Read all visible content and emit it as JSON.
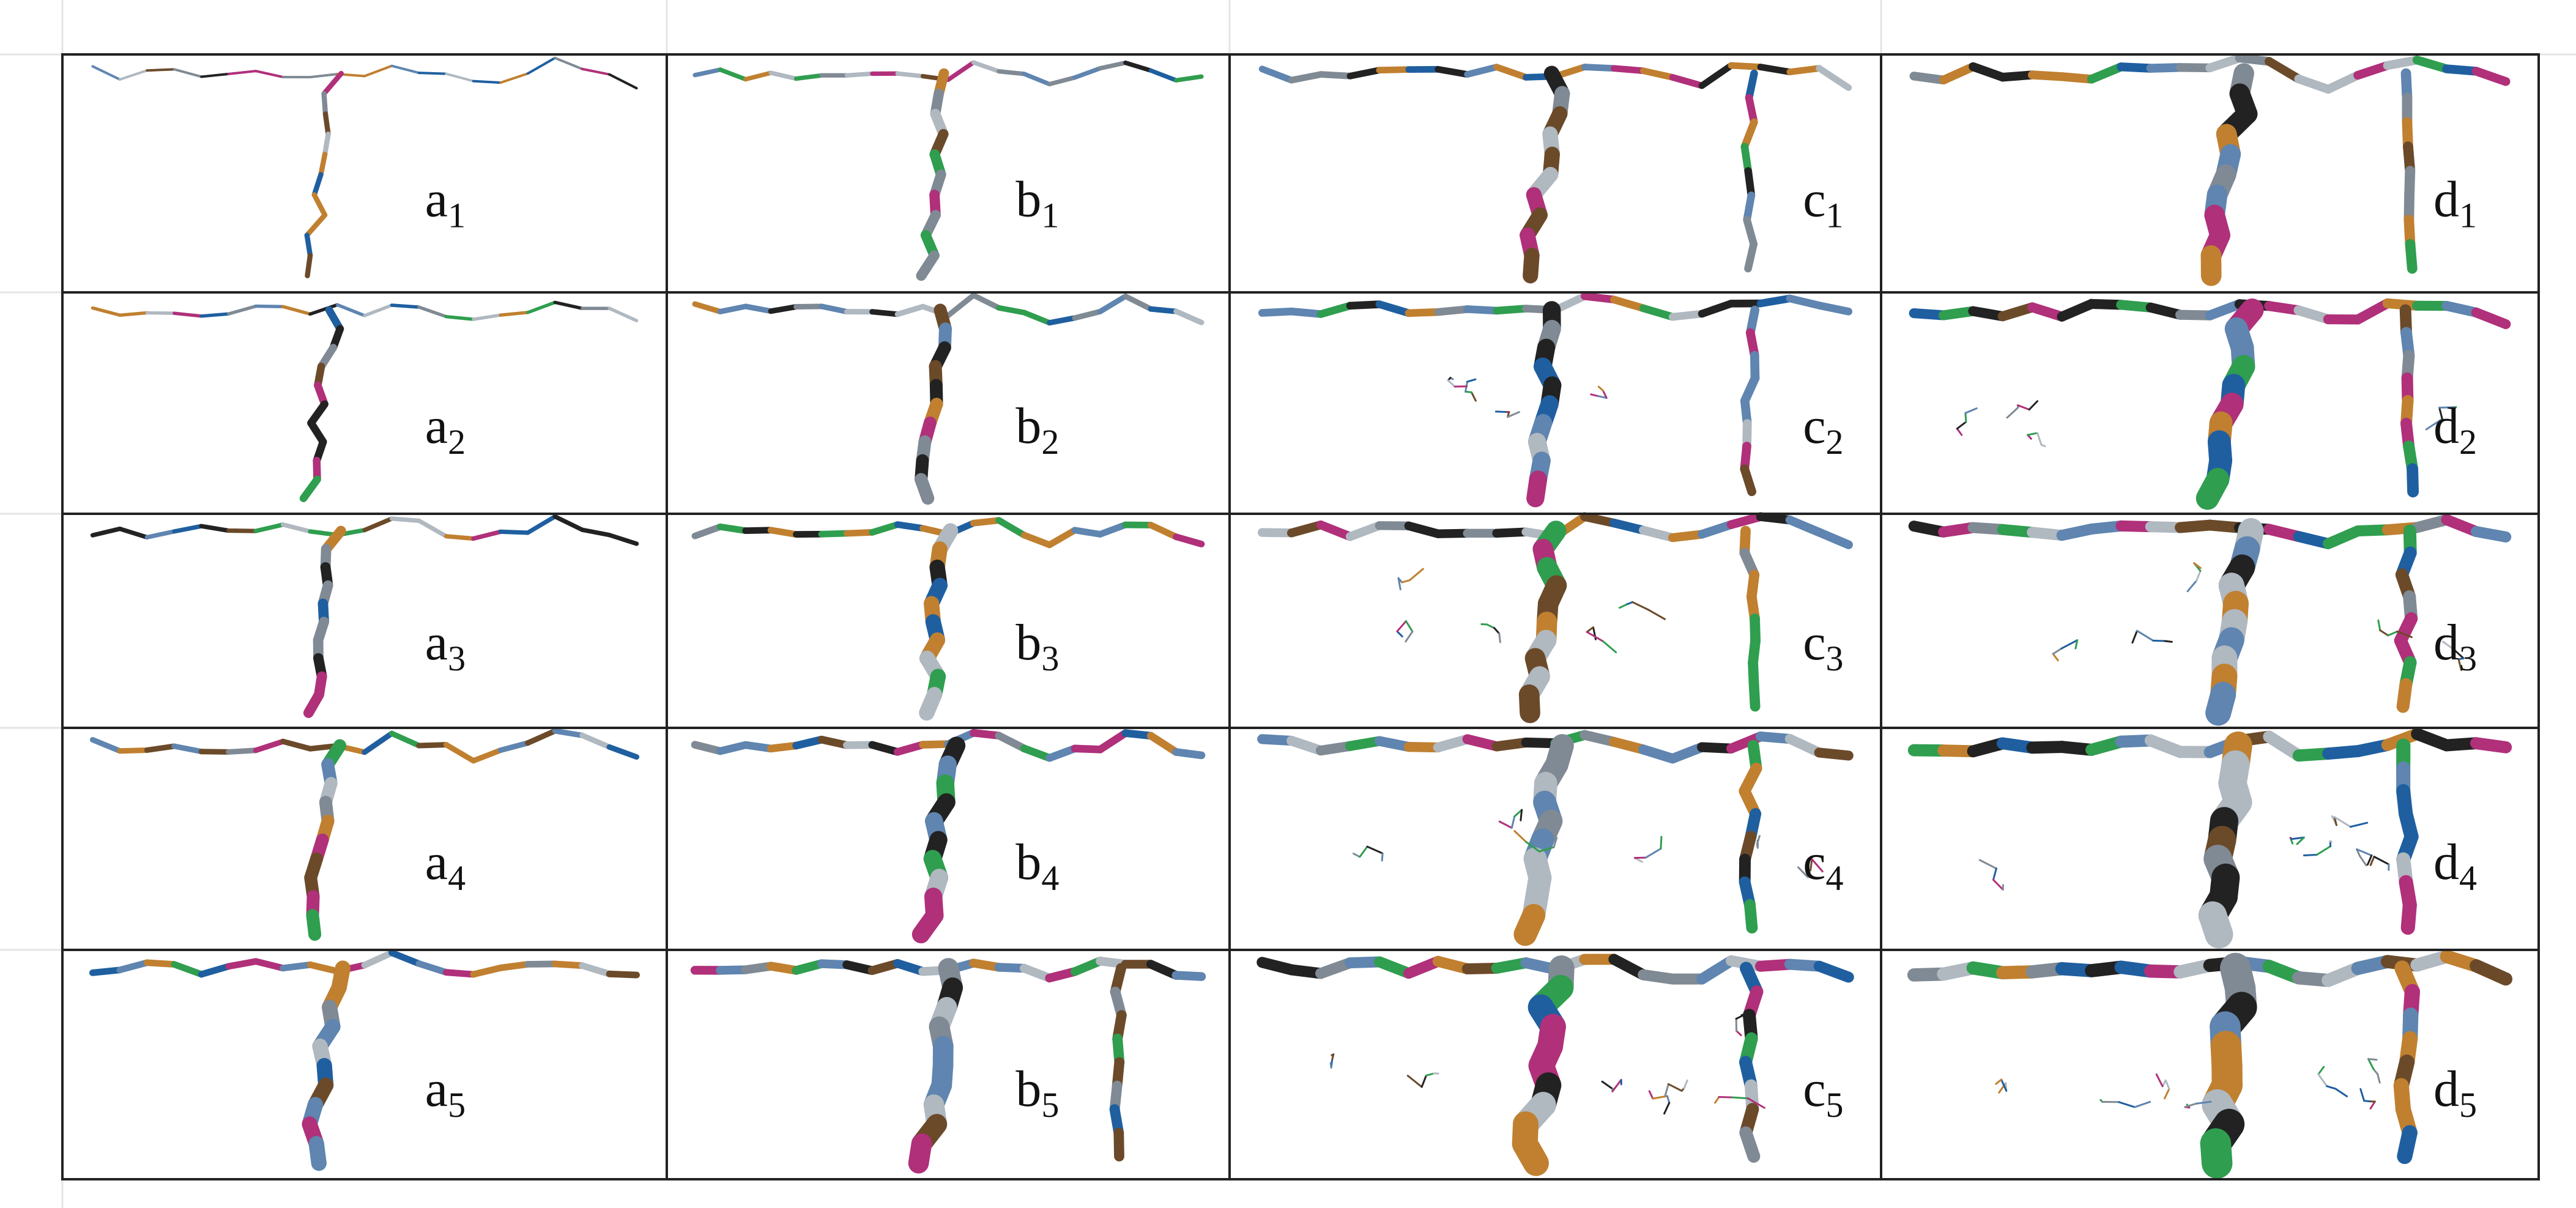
{
  "rows": [
    [
      {
        "letter": "a",
        "index": "1"
      },
      {
        "letter": "b",
        "index": "1"
      },
      {
        "letter": "c",
        "index": "1"
      },
      {
        "letter": "d",
        "index": "1"
      }
    ],
    [
      {
        "letter": "a",
        "index": "2"
      },
      {
        "letter": "b",
        "index": "2"
      },
      {
        "letter": "c",
        "index": "2"
      },
      {
        "letter": "d",
        "index": "2"
      }
    ],
    [
      {
        "letter": "a",
        "index": "3"
      },
      {
        "letter": "b",
        "index": "3"
      },
      {
        "letter": "c",
        "index": "3"
      },
      {
        "letter": "d",
        "index": "3"
      }
    ],
    [
      {
        "letter": "a",
        "index": "4"
      },
      {
        "letter": "b",
        "index": "4"
      },
      {
        "letter": "c",
        "index": "4"
      },
      {
        "letter": "d",
        "index": "4"
      }
    ],
    [
      {
        "letter": "a",
        "index": "5"
      },
      {
        "letter": "b",
        "index": "5"
      },
      {
        "letter": "c",
        "index": "5"
      },
      {
        "letter": "d",
        "index": "5"
      }
    ]
  ]
}
